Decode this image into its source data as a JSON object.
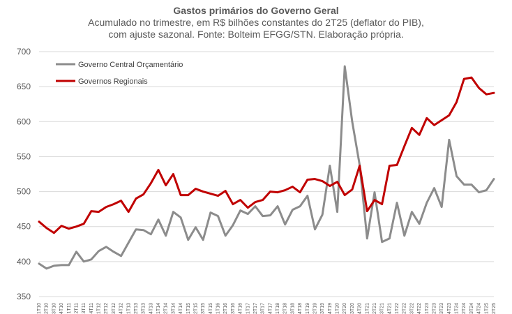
{
  "chart_data": {
    "type": "line",
    "title": "Gastos primários do Governo Geral",
    "subtitle": [
      "Acumulado no trimestre, em R$ bilhões constantes do 2T25 (deflator do PIB),",
      "com ajuste sazonal. Fonte: Bolteim EFGG/STN. Elaboração própria."
    ],
    "ylim": [
      350,
      700
    ],
    "yticks": [
      350,
      400,
      450,
      500,
      550,
      600,
      650,
      700
    ],
    "grid": true,
    "legend_position": "top-left",
    "x": [
      "1T10",
      "2T10",
      "3T10",
      "4T10",
      "1T11",
      "2T11",
      "3T11",
      "4T11",
      "1T12",
      "2T12",
      "3T12",
      "4T12",
      "1T13",
      "2T13",
      "3T13",
      "4T13",
      "1T14",
      "2T14",
      "3T14",
      "4T14",
      "1T15",
      "2T15",
      "3T15",
      "4T15",
      "1T16",
      "2T16",
      "3T16",
      "4T16",
      "1T17",
      "2T17",
      "3T17",
      "4T17",
      "1T18",
      "2T18",
      "3T18",
      "4T18",
      "1T19",
      "2T19",
      "3T19",
      "4T19",
      "1T20",
      "2T20",
      "3T20",
      "4T20",
      "1T21",
      "2T21",
      "3T21",
      "4T21",
      "1T22",
      "2T22",
      "3T22",
      "4T22",
      "1T23",
      "2T23",
      "3T23",
      "4T23",
      "1T24",
      "2T24",
      "3T24",
      "4T24",
      "1T25",
      "2T25"
    ],
    "series": [
      {
        "name": "Governo Central Orçamentário",
        "color": "#8c8c8c",
        "values": [
          397,
          390,
          394,
          395,
          395,
          414,
          400,
          403,
          415,
          421,
          414,
          408,
          427,
          446,
          445,
          439,
          460,
          437,
          471,
          463,
          431,
          449,
          431,
          470,
          465,
          437,
          452,
          473,
          468,
          479,
          465,
          466,
          479,
          453,
          474,
          479,
          494,
          446,
          467,
          537,
          471,
          679,
          600,
          538,
          433,
          499,
          428,
          433,
          484,
          437,
          471,
          454,
          484,
          505,
          478,
          574,
          522,
          510,
          510,
          499,
          502,
          518
        ]
      },
      {
        "name": "Governos Regionais",
        "color": "#c00000",
        "values": [
          457,
          448,
          441,
          451,
          447,
          450,
          454,
          472,
          471,
          478,
          482,
          487,
          471,
          490,
          496,
          512,
          531,
          509,
          525,
          495,
          495,
          504,
          500,
          497,
          494,
          501,
          482,
          488,
          477,
          485,
          488,
          500,
          499,
          502,
          507,
          499,
          517,
          518,
          515,
          508,
          514,
          495,
          503,
          537,
          472,
          488,
          482,
          537,
          538,
          565,
          591,
          581,
          605,
          595,
          602,
          609,
          628,
          661,
          663,
          648,
          639,
          641
        ]
      }
    ]
  }
}
